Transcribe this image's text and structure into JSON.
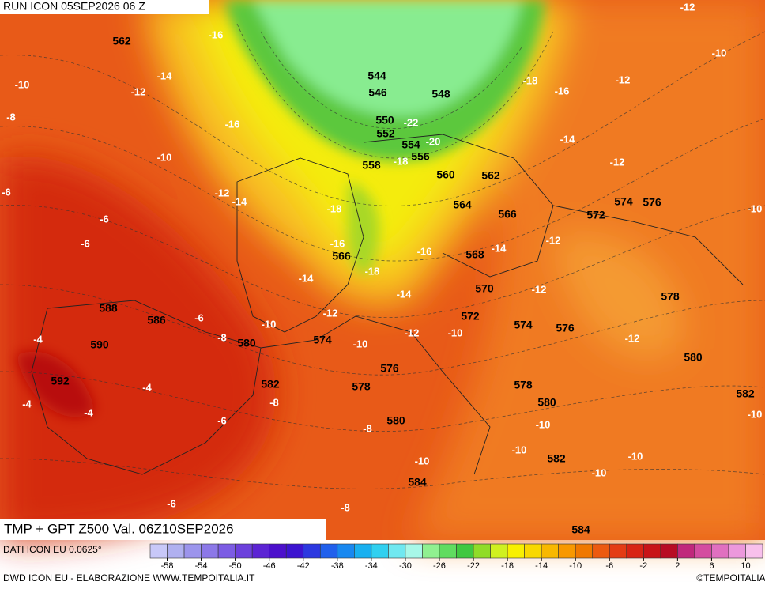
{
  "header": {
    "run": "RUN ICON 05SEP2026 06 Z"
  },
  "map": {
    "title": "TMP + GPT Z500 Val. 06Z10SEP2026",
    "geopotential_labels": [
      "562",
      "544",
      "546",
      "548",
      "550",
      "552",
      "554",
      "556",
      "558",
      "560",
      "562",
      "564",
      "566",
      "572",
      "574",
      "576",
      "566",
      "568",
      "570",
      "578",
      "588",
      "586",
      "572",
      "574",
      "576",
      "590",
      "580",
      "574",
      "580",
      "576",
      "592",
      "582",
      "578",
      "578",
      "582",
      "580",
      "580",
      "582",
      "584",
      "584"
    ],
    "temperature_labels": [
      "-12",
      "-16",
      "-10",
      "-14",
      "-12",
      "-18",
      "-16",
      "-12",
      "-10",
      "-8",
      "-16",
      "-22",
      "-20",
      "-18",
      "-14",
      "-10",
      "-12",
      "-6",
      "-12",
      "-14",
      "-18",
      "-6",
      "-6",
      "-16",
      "-16",
      "-12",
      "-14",
      "-10",
      "-14",
      "-18",
      "-12",
      "-14",
      "-6",
      "-10",
      "-12",
      "-4",
      "-8",
      "-12",
      "-10",
      "-10",
      "-12",
      "-4",
      "-4",
      "-4",
      "-8",
      "-6",
      "-8",
      "-10",
      "-10",
      "-10",
      "-10",
      "-10",
      "-10",
      "-6",
      "-8"
    ]
  },
  "footer": {
    "data_source": "DATI ICON EU 0.0625°",
    "credits": "DWD ICON EU - ELABORAZIONE WWW.TEMPOITALIA.IT",
    "brand": "©TEMPOITALIA"
  },
  "colorbar": {
    "range": [
      -60,
      12
    ],
    "colors": [
      "#c8c8f8",
      "#b0b0f0",
      "#9c94ec",
      "#8c78e8",
      "#7c5ce4",
      "#6c40dc",
      "#5c24d4",
      "#4c10cc",
      "#3c14d0",
      "#2c38e0",
      "#2060ec",
      "#1888f0",
      "#18b0f0",
      "#30d0f0",
      "#70e8f0",
      "#a8f8e8",
      "#90f090",
      "#60dc60",
      "#40c840",
      "#90dc28",
      "#d0f020",
      "#f8f000",
      "#f8d800",
      "#f8b800",
      "#f89800",
      "#f07800",
      "#ec5a10",
      "#e43c14",
      "#d82414",
      "#c81418",
      "#b80c24",
      "#c0287c",
      "#d44ca0",
      "#e070c0",
      "#ec98dc",
      "#f8c0ec"
    ],
    "ticks": [
      -58,
      -54,
      -50,
      -46,
      -42,
      -38,
      -34,
      -30,
      -26,
      -22,
      -18,
      -14,
      -10,
      -6,
      -2,
      2,
      6,
      10
    ]
  }
}
